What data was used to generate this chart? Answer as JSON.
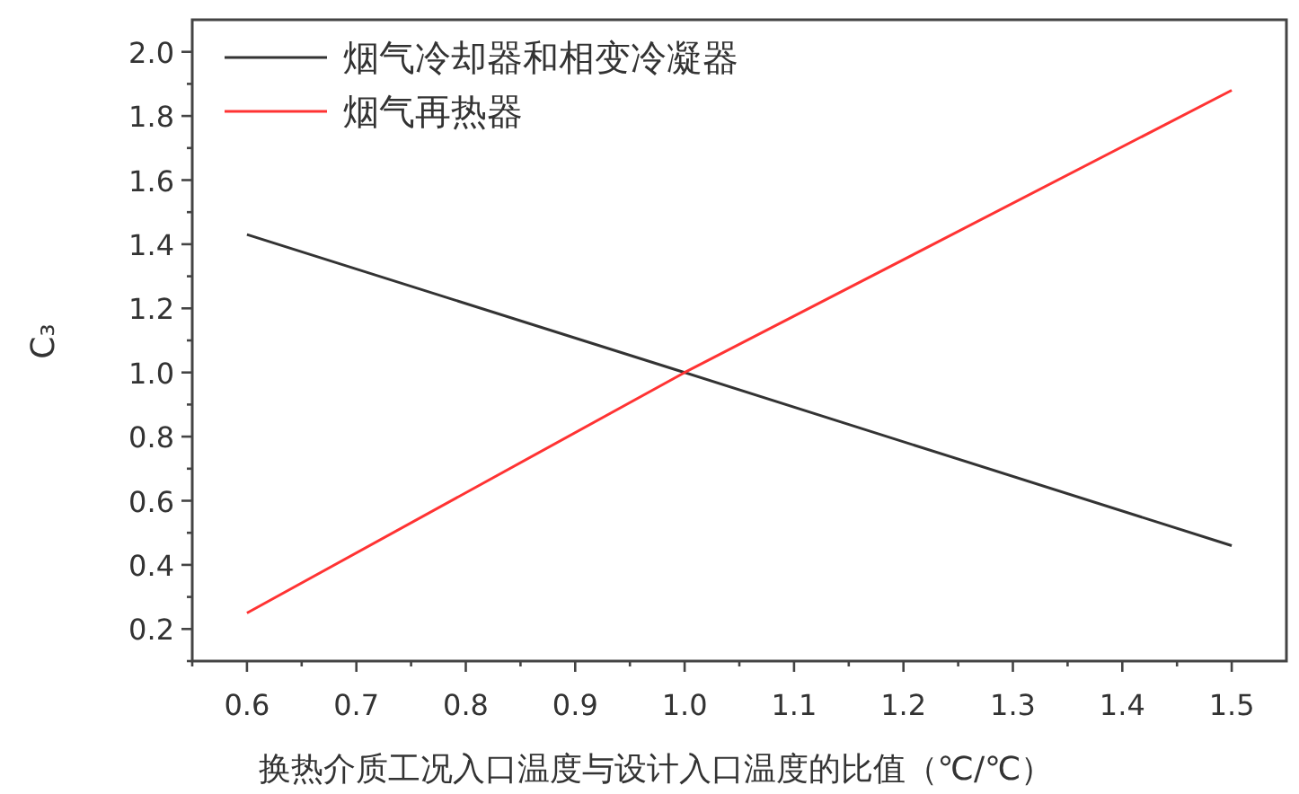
{
  "chart_data": {
    "type": "line",
    "xlabel": "换热介质工况入口温度与设计入口温度的比值（℃/℃）",
    "ylabel": "C₃",
    "series": [
      {
        "name": "烟气冷却器和相变冷凝器",
        "color": "#333333",
        "x": [
          0.6,
          1.0,
          1.5
        ],
        "values": [
          1.43,
          1.0,
          0.46
        ]
      },
      {
        "name": "烟气再热器",
        "color": "#ff3333",
        "x": [
          0.6,
          1.0,
          1.5
        ],
        "values": [
          0.25,
          1.0,
          1.88
        ]
      }
    ],
    "xlim": [
      0.55,
      1.55
    ],
    "ylim": [
      0.1,
      2.1
    ],
    "xticks": [
      {
        "value": 0.55,
        "label": null
      },
      0.6,
      {
        "value": 0.65,
        "label": null
      },
      0.7,
      {
        "value": 0.75,
        "label": null
      },
      0.8,
      {
        "value": 0.85,
        "label": null
      },
      0.9,
      {
        "value": 0.95,
        "label": null
      },
      {
        "value": 1,
        "label": "1.0"
      },
      {
        "value": 1.05,
        "label": null
      },
      1.1,
      {
        "value": 1.15,
        "label": null
      },
      1.2,
      {
        "value": 1.25,
        "label": null
      },
      1.3,
      {
        "value": 1.35,
        "label": null
      },
      1.4,
      {
        "value": 1.45,
        "label": null
      },
      1.5
    ],
    "yticks": [
      {
        "value": 0.1,
        "label": null
      },
      0.2,
      {
        "value": 0.3,
        "label": null
      },
      0.4,
      {
        "value": 0.5,
        "label": null
      },
      0.6,
      {
        "value": 0.7,
        "label": null
      },
      0.8,
      {
        "value": 0.9,
        "label": null
      },
      {
        "value": 1,
        "label": "1.0"
      },
      {
        "value": 1.1,
        "label": null
      },
      1.2,
      {
        "value": 1.3,
        "label": null
      },
      1.4,
      {
        "value": 1.5,
        "label": null
      },
      1.6,
      {
        "value": 1.7,
        "label": null
      },
      1.8,
      {
        "value": 1.9,
        "label": null
      },
      {
        "value": 2,
        "label": "2.0"
      }
    ],
    "grid": false,
    "legend": "top left",
    "marker": "none",
    "line_style": "solid"
  }
}
